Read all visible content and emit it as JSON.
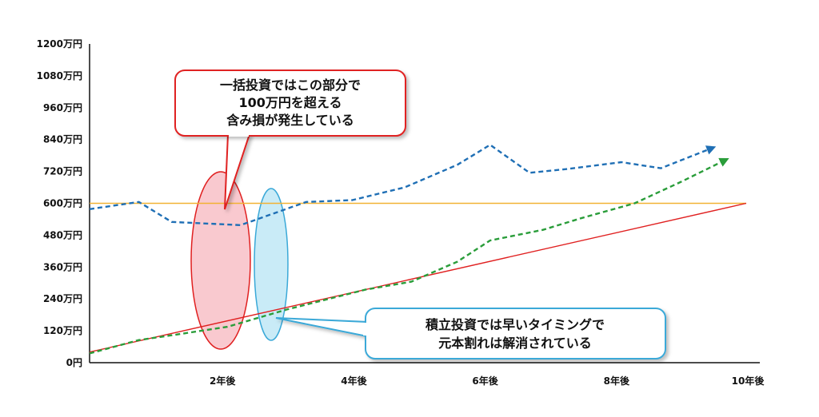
{
  "chart_data": {
    "type": "line",
    "title": "",
    "xlabel": "",
    "ylabel": "",
    "x": [
      0,
      1,
      1.5,
      2.5,
      3,
      3.5,
      4.5,
      5,
      5.5,
      6,
      6.4,
      7,
      7.5,
      8,
      8.5,
      9,
      9.5,
      10
    ],
    "xlim": [
      0,
      10
    ],
    "ylim": [
      0,
      1200
    ],
    "x_ticks": [
      {
        "x": 2,
        "label": "2年後"
      },
      {
        "x": 4,
        "label": "4年後"
      },
      {
        "x": 6,
        "label": "6年後"
      },
      {
        "x": 8,
        "label": "8年後"
      },
      {
        "x": 10,
        "label": "10年後"
      }
    ],
    "y_ticks": [
      {
        "v": 0,
        "label": "0円"
      },
      {
        "v": 120,
        "label": "120万円"
      },
      {
        "v": 240,
        "label": "240万円"
      },
      {
        "v": 360,
        "label": "360万円"
      },
      {
        "v": 480,
        "label": "480万円"
      },
      {
        "v": 600,
        "label": "600万円"
      },
      {
        "v": 720,
        "label": "720万円"
      },
      {
        "v": 840,
        "label": "840万円"
      },
      {
        "v": 960,
        "label": "960万円"
      },
      {
        "v": 1080,
        "label": "1080万円"
      },
      {
        "v": 1200,
        "label": "1200万円"
      }
    ],
    "grid": false,
    "series": [
      {
        "color": "#1f6fb5",
        "dash": true,
        "arrow": true,
        "points": [
          [
            0,
            578
          ],
          [
            0.75,
            605
          ],
          [
            1.25,
            530
          ],
          [
            2.3,
            518
          ],
          [
            3.3,
            605
          ],
          [
            4.0,
            612
          ],
          [
            4.8,
            660
          ],
          [
            5.6,
            745
          ],
          [
            6.1,
            820
          ],
          [
            6.7,
            715
          ],
          [
            7.3,
            730
          ],
          [
            8.1,
            755
          ],
          [
            8.7,
            732
          ],
          [
            9.5,
            810
          ]
        ]
      },
      {
        "color": "#2a9d3a",
        "dash": true,
        "arrow": true,
        "points": [
          [
            0,
            35
          ],
          [
            0.75,
            85
          ],
          [
            1.3,
            105
          ],
          [
            2.1,
            135
          ],
          [
            3.0,
            200
          ],
          [
            4.2,
            275
          ],
          [
            4.9,
            305
          ],
          [
            5.6,
            380
          ],
          [
            6.1,
            460
          ],
          [
            6.9,
            500
          ],
          [
            7.5,
            545
          ],
          [
            8.3,
            600
          ],
          [
            9.0,
            680
          ],
          [
            9.7,
            765
          ]
        ]
      },
      {
        "color": "#e02020",
        "dash": false,
        "arrow": false,
        "points": [
          [
            0,
            40
          ],
          [
            10,
            600
          ]
        ]
      },
      {
        "color": "#f2b233",
        "dash": false,
        "arrow": false,
        "points": [
          [
            0,
            600
          ],
          [
            10,
            600
          ]
        ]
      }
    ],
    "annotations": [
      {
        "lines": [
          "一括投資ではこの部分で",
          "100万円を超える",
          "含み損が発生している"
        ],
        "border": "#e02020"
      },
      {
        "lines": [
          "積立投資では早いタイミングで",
          "元本割れは解消されている"
        ],
        "border": "#3ba9d8"
      }
    ]
  }
}
